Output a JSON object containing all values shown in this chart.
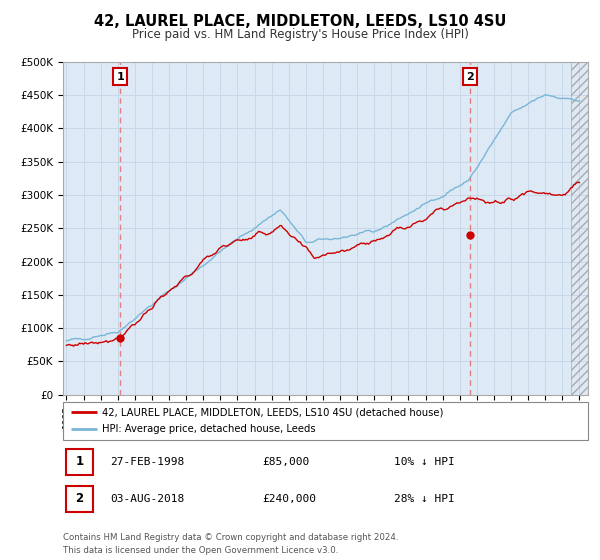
{
  "title": "42, LAUREL PLACE, MIDDLETON, LEEDS, LS10 4SU",
  "subtitle": "Price paid vs. HM Land Registry's House Price Index (HPI)",
  "title_fontsize": 10.5,
  "subtitle_fontsize": 8.5,
  "ylim": [
    0,
    500000
  ],
  "yticks": [
    0,
    50000,
    100000,
    150000,
    200000,
    250000,
    300000,
    350000,
    400000,
    450000,
    500000
  ],
  "ytick_labels": [
    "£0",
    "£50K",
    "£100K",
    "£150K",
    "£200K",
    "£250K",
    "£300K",
    "£350K",
    "£400K",
    "£450K",
    "£500K"
  ],
  "xlim_start": 1994.8,
  "xlim_end": 2025.5,
  "hpi_color": "#7ab5d8",
  "price_color": "#cc0000",
  "vline_color": "#e08080",
  "grid_color": "#c8d8e8",
  "background_color": "#ddeaf5",
  "sale1_date": 1998.15,
  "sale1_price": 85000,
  "sale2_date": 2018.58,
  "sale2_price": 240000,
  "legend_label1": "42, LAUREL PLACE, MIDDLETON, LEEDS, LS10 4SU (detached house)",
  "legend_label2": "HPI: Average price, detached house, Leeds",
  "annot1_label": "1",
  "annot2_label": "2",
  "table_row1": [
    "1",
    "27-FEB-1998",
    "£85,000",
    "10% ↓ HPI"
  ],
  "table_row2": [
    "2",
    "03-AUG-2018",
    "£240,000",
    "28% ↓ HPI"
  ],
  "footer1": "Contains HM Land Registry data © Crown copyright and database right 2024.",
  "footer2": "This data is licensed under the Open Government Licence v3.0."
}
